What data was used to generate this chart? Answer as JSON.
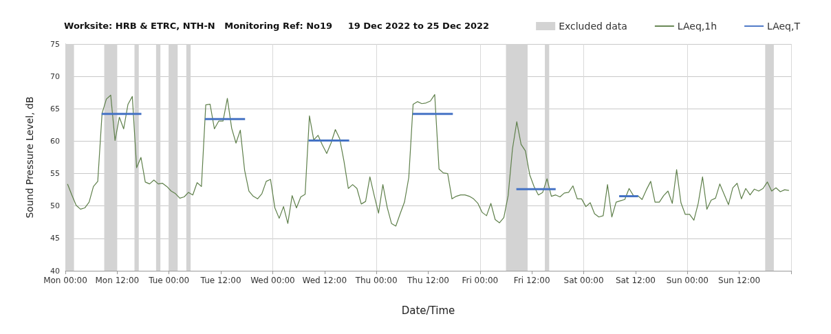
{
  "chart_data": {
    "type": "line",
    "title": "Worksite: HRB & ETRC, NTH-N   Monitoring Ref: No19     19 Dec 2022 to 25 Dec 2022",
    "xlabel": "Date/Time",
    "ylabel": "Sound Pressure Level, dB",
    "xlim": [
      "2022-12-19T00:00",
      "2022-12-26T00:00"
    ],
    "ylim": [
      40,
      75
    ],
    "yticks": [
      40,
      45,
      50,
      55,
      60,
      65,
      70,
      75
    ],
    "xticks": [
      {
        "value": "2022-12-19T00:00",
        "label": "Mon 00:00"
      },
      {
        "value": "2022-12-19T12:00",
        "label": "Mon 12:00"
      },
      {
        "value": "2022-12-20T00:00",
        "label": "Tue 00:00"
      },
      {
        "value": "2022-12-20T12:00",
        "label": "Tue 12:00"
      },
      {
        "value": "2022-12-21T00:00",
        "label": "Wed 00:00"
      },
      {
        "value": "2022-12-21T12:00",
        "label": "Wed 12:00"
      },
      {
        "value": "2022-12-22T00:00",
        "label": "Thu 00:00"
      },
      {
        "value": "2022-12-22T12:00",
        "label": "Thu 12:00"
      },
      {
        "value": "2022-12-23T00:00",
        "label": "Fri 00:00"
      },
      {
        "value": "2022-12-23T12:00",
        "label": "Fri 12:00"
      },
      {
        "value": "2022-12-24T00:00",
        "label": "Sat 00:00"
      },
      {
        "value": "2022-12-24T12:00",
        "label": "Sat 12:00"
      },
      {
        "value": "2022-12-25T00:00",
        "label": "Sun 00:00"
      },
      {
        "value": "2022-12-25T12:00",
        "label": "Sun 12:00"
      },
      {
        "value": "2022-12-26T00:00",
        "label": null
      }
    ],
    "grid": true,
    "legend": "top right",
    "marker": "none",
    "line_style": "solid",
    "bands": [
      {
        "axis": "x",
        "from": "2022-12-19T00:00",
        "to": "2022-12-19T02:00",
        "label": "Excluded data",
        "color": "#d3d3d3"
      },
      {
        "axis": "x",
        "from": "2022-12-19T09:00",
        "to": "2022-12-19T12:00",
        "color": "#d3d3d3"
      },
      {
        "axis": "x",
        "from": "2022-12-19T16:00",
        "to": "2022-12-19T17:00",
        "color": "#d3d3d3"
      },
      {
        "axis": "x",
        "from": "2022-12-19T21:00",
        "to": "2022-12-19T22:00",
        "color": "#d3d3d3"
      },
      {
        "axis": "x",
        "from": "2022-12-20T00:00",
        "to": "2022-12-20T02:00",
        "color": "#d3d3d3"
      },
      {
        "axis": "x",
        "from": "2022-12-20T04:00",
        "to": "2022-12-20T05:00",
        "color": "#d3d3d3"
      },
      {
        "axis": "x",
        "from": "2022-12-23T06:00",
        "to": "2022-12-23T11:00",
        "color": "#d3d3d3"
      },
      {
        "axis": "x",
        "from": "2022-12-23T15:00",
        "to": "2022-12-23T16:00",
        "color": "#d3d3d3"
      },
      {
        "axis": "x",
        "from": "2022-12-25T18:00",
        "to": "2022-12-25T20:00",
        "color": "#d3d3d3"
      }
    ],
    "series": [
      {
        "name": "LAeq,1h",
        "color": "#5e7f4a",
        "x": [
          "2022-12-19T00:30",
          "2022-12-19T01:30",
          "2022-12-19T02:30",
          "2022-12-19T03:30",
          "2022-12-19T04:30",
          "2022-12-19T05:30",
          "2022-12-19T06:30",
          "2022-12-19T07:30",
          "2022-12-19T08:30",
          "2022-12-19T09:30",
          "2022-12-19T10:30",
          "2022-12-19T11:30",
          "2022-12-19T12:30",
          "2022-12-19T13:30",
          "2022-12-19T14:30",
          "2022-12-19T15:30",
          "2022-12-19T16:30",
          "2022-12-19T17:30",
          "2022-12-19T18:30",
          "2022-12-19T19:30",
          "2022-12-19T20:30",
          "2022-12-19T21:30",
          "2022-12-19T22:30",
          "2022-12-19T23:30",
          "2022-12-20T00:30",
          "2022-12-20T01:30",
          "2022-12-20T02:30",
          "2022-12-20T03:30",
          "2022-12-20T04:30",
          "2022-12-20T05:30",
          "2022-12-20T06:30",
          "2022-12-20T07:30",
          "2022-12-20T08:30",
          "2022-12-20T09:30",
          "2022-12-20T10:30",
          "2022-12-20T11:30",
          "2022-12-20T12:30",
          "2022-12-20T13:30",
          "2022-12-20T14:30",
          "2022-12-20T15:30",
          "2022-12-20T16:30",
          "2022-12-20T17:30",
          "2022-12-20T18:30",
          "2022-12-20T19:30",
          "2022-12-20T20:30",
          "2022-12-20T21:30",
          "2022-12-20T22:30",
          "2022-12-20T23:30",
          "2022-12-21T00:30",
          "2022-12-21T01:30",
          "2022-12-21T02:30",
          "2022-12-21T03:30",
          "2022-12-21T04:30",
          "2022-12-21T05:30",
          "2022-12-21T06:30",
          "2022-12-21T07:30",
          "2022-12-21T08:30",
          "2022-12-21T09:30",
          "2022-12-21T10:30",
          "2022-12-21T11:30",
          "2022-12-21T12:30",
          "2022-12-21T13:30",
          "2022-12-21T14:30",
          "2022-12-21T15:30",
          "2022-12-21T16:30",
          "2022-12-21T17:30",
          "2022-12-21T18:30",
          "2022-12-21T19:30",
          "2022-12-21T20:30",
          "2022-12-21T21:30",
          "2022-12-21T22:30",
          "2022-12-21T23:30",
          "2022-12-22T00:30",
          "2022-12-22T01:30",
          "2022-12-22T02:30",
          "2022-12-22T03:30",
          "2022-12-22T04:30",
          "2022-12-22T05:30",
          "2022-12-22T06:30",
          "2022-12-22T07:30",
          "2022-12-22T08:30",
          "2022-12-22T09:30",
          "2022-12-22T10:30",
          "2022-12-22T11:30",
          "2022-12-22T12:30",
          "2022-12-22T13:30",
          "2022-12-22T14:30",
          "2022-12-22T15:30",
          "2022-12-22T16:30",
          "2022-12-22T17:30",
          "2022-12-22T18:30",
          "2022-12-22T19:30",
          "2022-12-22T20:30",
          "2022-12-22T21:30",
          "2022-12-22T22:30",
          "2022-12-22T23:30",
          "2022-12-23T00:30",
          "2022-12-23T01:30",
          "2022-12-23T02:30",
          "2022-12-23T03:30",
          "2022-12-23T04:30",
          "2022-12-23T05:30",
          "2022-12-23T06:30",
          "2022-12-23T07:30",
          "2022-12-23T08:30",
          "2022-12-23T09:30",
          "2022-12-23T10:30",
          "2022-12-23T11:30",
          "2022-12-23T12:30",
          "2022-12-23T13:30",
          "2022-12-23T14:30",
          "2022-12-23T15:30",
          "2022-12-23T16:30",
          "2022-12-23T17:30",
          "2022-12-23T18:30",
          "2022-12-23T19:30",
          "2022-12-23T20:30",
          "2022-12-23T21:30",
          "2022-12-23T22:30",
          "2022-12-23T23:30",
          "2022-12-24T00:30",
          "2022-12-24T01:30",
          "2022-12-24T02:30",
          "2022-12-24T03:30",
          "2022-12-24T04:30",
          "2022-12-24T05:30",
          "2022-12-24T06:30",
          "2022-12-24T07:30",
          "2022-12-24T08:30",
          "2022-12-24T09:30",
          "2022-12-24T10:30",
          "2022-12-24T11:30",
          "2022-12-24T12:30",
          "2022-12-24T13:30",
          "2022-12-24T14:30",
          "2022-12-24T15:30",
          "2022-12-24T16:30",
          "2022-12-24T17:30",
          "2022-12-24T18:30",
          "2022-12-24T19:30",
          "2022-12-24T20:30",
          "2022-12-24T21:30",
          "2022-12-24T22:30",
          "2022-12-24T23:30",
          "2022-12-25T00:30",
          "2022-12-25T01:30",
          "2022-12-25T02:30",
          "2022-12-25T03:30",
          "2022-12-25T04:30",
          "2022-12-25T05:30",
          "2022-12-25T06:30",
          "2022-12-25T07:30",
          "2022-12-25T08:30",
          "2022-12-25T09:30",
          "2022-12-25T10:30",
          "2022-12-25T11:30",
          "2022-12-25T12:30",
          "2022-12-25T13:30",
          "2022-12-25T14:30",
          "2022-12-25T15:30",
          "2022-12-25T16:30",
          "2022-12-25T17:30",
          "2022-12-25T18:30",
          "2022-12-25T19:30",
          "2022-12-25T20:30",
          "2022-12-25T21:30",
          "2022-12-25T22:30",
          "2022-12-25T23:30"
        ],
        "values": [
          53.4,
          51.7,
          50.1,
          49.5,
          49.7,
          50.6,
          53.0,
          53.8,
          64.3,
          66.5,
          67.1,
          60.1,
          63.7,
          61.9,
          65.7,
          66.9,
          55.9,
          57.5,
          53.7,
          53.4,
          54.0,
          53.4,
          53.5,
          53.0,
          52.3,
          51.9,
          51.2,
          51.4,
          52.1,
          51.7,
          53.6,
          53.0,
          65.6,
          65.7,
          61.9,
          63.1,
          63.1,
          66.6,
          62.0,
          59.7,
          61.7,
          55.5,
          52.3,
          51.5,
          51.1,
          51.9,
          53.8,
          54.1,
          49.7,
          48.1,
          49.9,
          47.3,
          51.6,
          49.7,
          51.4,
          51.8,
          63.9,
          60.2,
          60.9,
          59.4,
          58.1,
          59.7,
          61.8,
          60.4,
          56.9,
          52.7,
          53.3,
          52.7,
          50.3,
          50.7,
          54.5,
          51.6,
          48.9,
          53.3,
          49.8,
          47.3,
          46.9,
          48.8,
          50.6,
          54.4,
          65.7,
          66.1,
          65.8,
          65.9,
          66.2,
          67.2,
          55.7,
          55.1,
          55.0,
          51.1,
          51.5,
          51.7,
          51.7,
          51.5,
          51.1,
          50.4,
          49.0,
          48.5,
          50.4,
          47.9,
          47.4,
          48.2,
          51.6,
          58.8,
          63.0,
          59.5,
          58.5,
          54.8,
          53.0,
          51.7,
          52.1,
          54.2,
          51.5,
          51.7,
          51.4,
          52.0,
          52.1,
          53.1,
          51.1,
          51.1,
          49.9,
          50.5,
          48.8,
          48.3,
          48.5,
          53.3,
          48.3,
          50.6,
          50.8,
          51.0,
          52.7,
          51.6,
          51.6,
          51.0,
          52.5,
          53.8,
          50.6,
          50.6,
          51.6,
          52.3,
          50.4,
          55.6,
          50.5,
          48.7,
          48.7,
          47.8,
          50.4,
          54.5,
          49.5,
          50.9,
          51.2,
          53.4,
          51.8,
          50.2,
          52.8,
          53.5,
          51.1,
          52.7,
          51.7,
          52.6,
          52.3,
          52.7,
          53.7,
          52.3,
          52.8,
          52.2,
          52.5,
          52.4
        ]
      },
      {
        "name": "LAeq,T",
        "color": "#4472c4",
        "x": [
          "2022-12-19T08:24",
          "2022-12-19T17:36"
        ],
        "values": [
          64.2,
          64.2
        ]
      },
      {
        "color": "#4472c4",
        "x": [
          "2022-12-20T08:18",
          "2022-12-20T17:36"
        ],
        "values": [
          63.4,
          63.4
        ]
      },
      {
        "color": "#4472c4",
        "x": [
          "2022-12-21T08:18",
          "2022-12-21T17:42"
        ],
        "values": [
          60.1,
          60.1
        ]
      },
      {
        "color": "#4472c4",
        "x": [
          "2022-12-22T08:24",
          "2022-12-22T17:42"
        ],
        "values": [
          64.2,
          64.2
        ]
      },
      {
        "color": "#4472c4",
        "x": [
          "2022-12-23T08:24",
          "2022-12-23T17:30"
        ],
        "values": [
          52.6,
          52.6
        ]
      },
      {
        "color": "#4472c4",
        "x": [
          "2022-12-24T08:12",
          "2022-12-24T12:36"
        ],
        "values": [
          51.5,
          51.5
        ]
      }
    ]
  }
}
